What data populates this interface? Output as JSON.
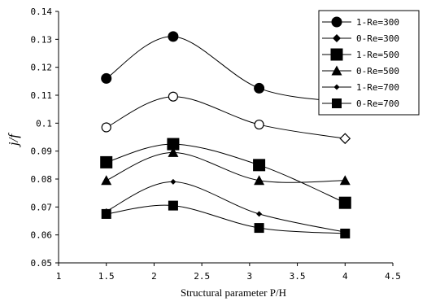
{
  "chart_data": {
    "type": "line",
    "title": "",
    "xlabel": "Structural parameter P/H",
    "ylabel": "j/f",
    "xlim": [
      1,
      4.5
    ],
    "ylim": [
      0.05,
      0.14
    ],
    "xticks": [
      "1",
      "1.5",
      "2",
      "2.5",
      "3",
      "3.5",
      "4",
      "4.5"
    ],
    "yticks": [
      "0.05",
      "0.06",
      "0.07",
      "0.08",
      "0.09",
      "0.1",
      "0.11",
      "0.12",
      "0.13",
      "0.14"
    ],
    "grid": false,
    "legend_position": "top-right",
    "x": [
      1.5,
      2.2,
      3.1,
      4
    ],
    "series": [
      {
        "name": "1-Re=300",
        "marker": "circle-filled",
        "values": [
          0.116,
          0.131,
          0.1125,
          0.1075
        ]
      },
      {
        "name": "0-Re=300",
        "marker": "diamond-filled",
        "values": [
          0.0985,
          0.1095,
          0.0995,
          0.0945
        ]
      },
      {
        "name": "1-Re=500",
        "marker": "square-filled",
        "values": [
          0.086,
          0.0925,
          0.085,
          0.0715
        ]
      },
      {
        "name": "0-Re=500",
        "marker": "triangle-filled",
        "values": [
          0.0795,
          0.0895,
          0.0795,
          0.0795
        ]
      },
      {
        "name": "1-Re=700",
        "marker": "diamond-small",
        "values": [
          0.0685,
          0.079,
          0.0675,
          0.061
        ]
      },
      {
        "name": "0-Re=700",
        "marker": "square-medium",
        "values": [
          0.0675,
          0.0705,
          0.0625,
          0.0605
        ]
      }
    ]
  }
}
